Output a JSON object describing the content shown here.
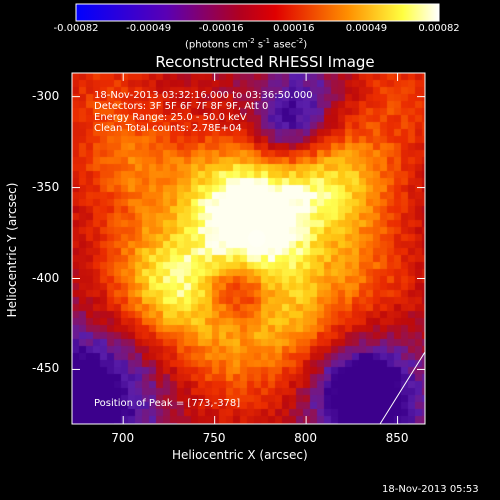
{
  "colorbar": {
    "ticks": [
      "-0.00082",
      "-0.00049",
      "-0.00016",
      "0.00016",
      "0.00049",
      "0.00082"
    ],
    "unit_prefix": "(photons cm",
    "unit_exp1": "-2",
    "unit_mid": " s",
    "unit_exp2": "-1",
    "unit_mid2": " asec",
    "unit_exp3": "-2",
    "unit_suffix": ")"
  },
  "chart_data": {
    "type": "heatmap",
    "title": "Reconstructed RHESSI Image",
    "xlabel": "Heliocentric X (arcsec)",
    "ylabel": "Heliocentric Y (arcsec)",
    "xlim": [
      672,
      865
    ],
    "ylim": [
      -480,
      -287
    ],
    "xticks": [
      700,
      750,
      800,
      850
    ],
    "yticks": [
      -300,
      -350,
      -400,
      -450
    ],
    "colorbar_range": [
      -0.00082,
      0.00082
    ],
    "colormap": "blue-purple-red-orange-yellow-white",
    "peak": [
      773,
      -378
    ],
    "sources": [
      {
        "x": 773,
        "y": -378,
        "strength": 1.0
      },
      {
        "x": 757,
        "y": -352,
        "strength": 0.8
      },
      {
        "x": 738,
        "y": -410,
        "strength": 0.75
      },
      {
        "x": 790,
        "y": -420,
        "strength": 0.62
      },
      {
        "x": 800,
        "y": -350,
        "strength": 0.55
      },
      {
        "x": 825,
        "y": -345,
        "strength": 0.55
      },
      {
        "x": 705,
        "y": -340,
        "strength": 0.5
      },
      {
        "x": 715,
        "y": -395,
        "strength": 0.55
      },
      {
        "x": 830,
        "y": -395,
        "strength": 0.45
      },
      {
        "x": 760,
        "y": -450,
        "strength": 0.4
      },
      {
        "x": 850,
        "y": -300,
        "strength": 0.35
      },
      {
        "x": 690,
        "y": -300,
        "strength": 0.3
      }
    ],
    "holes": [
      {
        "x": 762,
        "y": -405,
        "depth": 0.7
      },
      {
        "x": 790,
        "y": -320,
        "depth": 0.5
      },
      {
        "x": 830,
        "y": -460,
        "depth": 0.5
      },
      {
        "x": 675,
        "y": -460,
        "depth": 0.4
      }
    ]
  },
  "annotations": {
    "time_range": "18-Nov-2013 03:32:16.000 to 03:36:50.000",
    "detectors": "Detectors: 3F 5F 6F 7F 8F 9F, Att 0",
    "energy": "Energy Range: 25.0 - 50.0 keV",
    "clean": "Clean     Total counts: 2.78E+04",
    "peak": "Position of Peak = [773,-378]"
  },
  "timestamp": "18-Nov-2013 05:53"
}
